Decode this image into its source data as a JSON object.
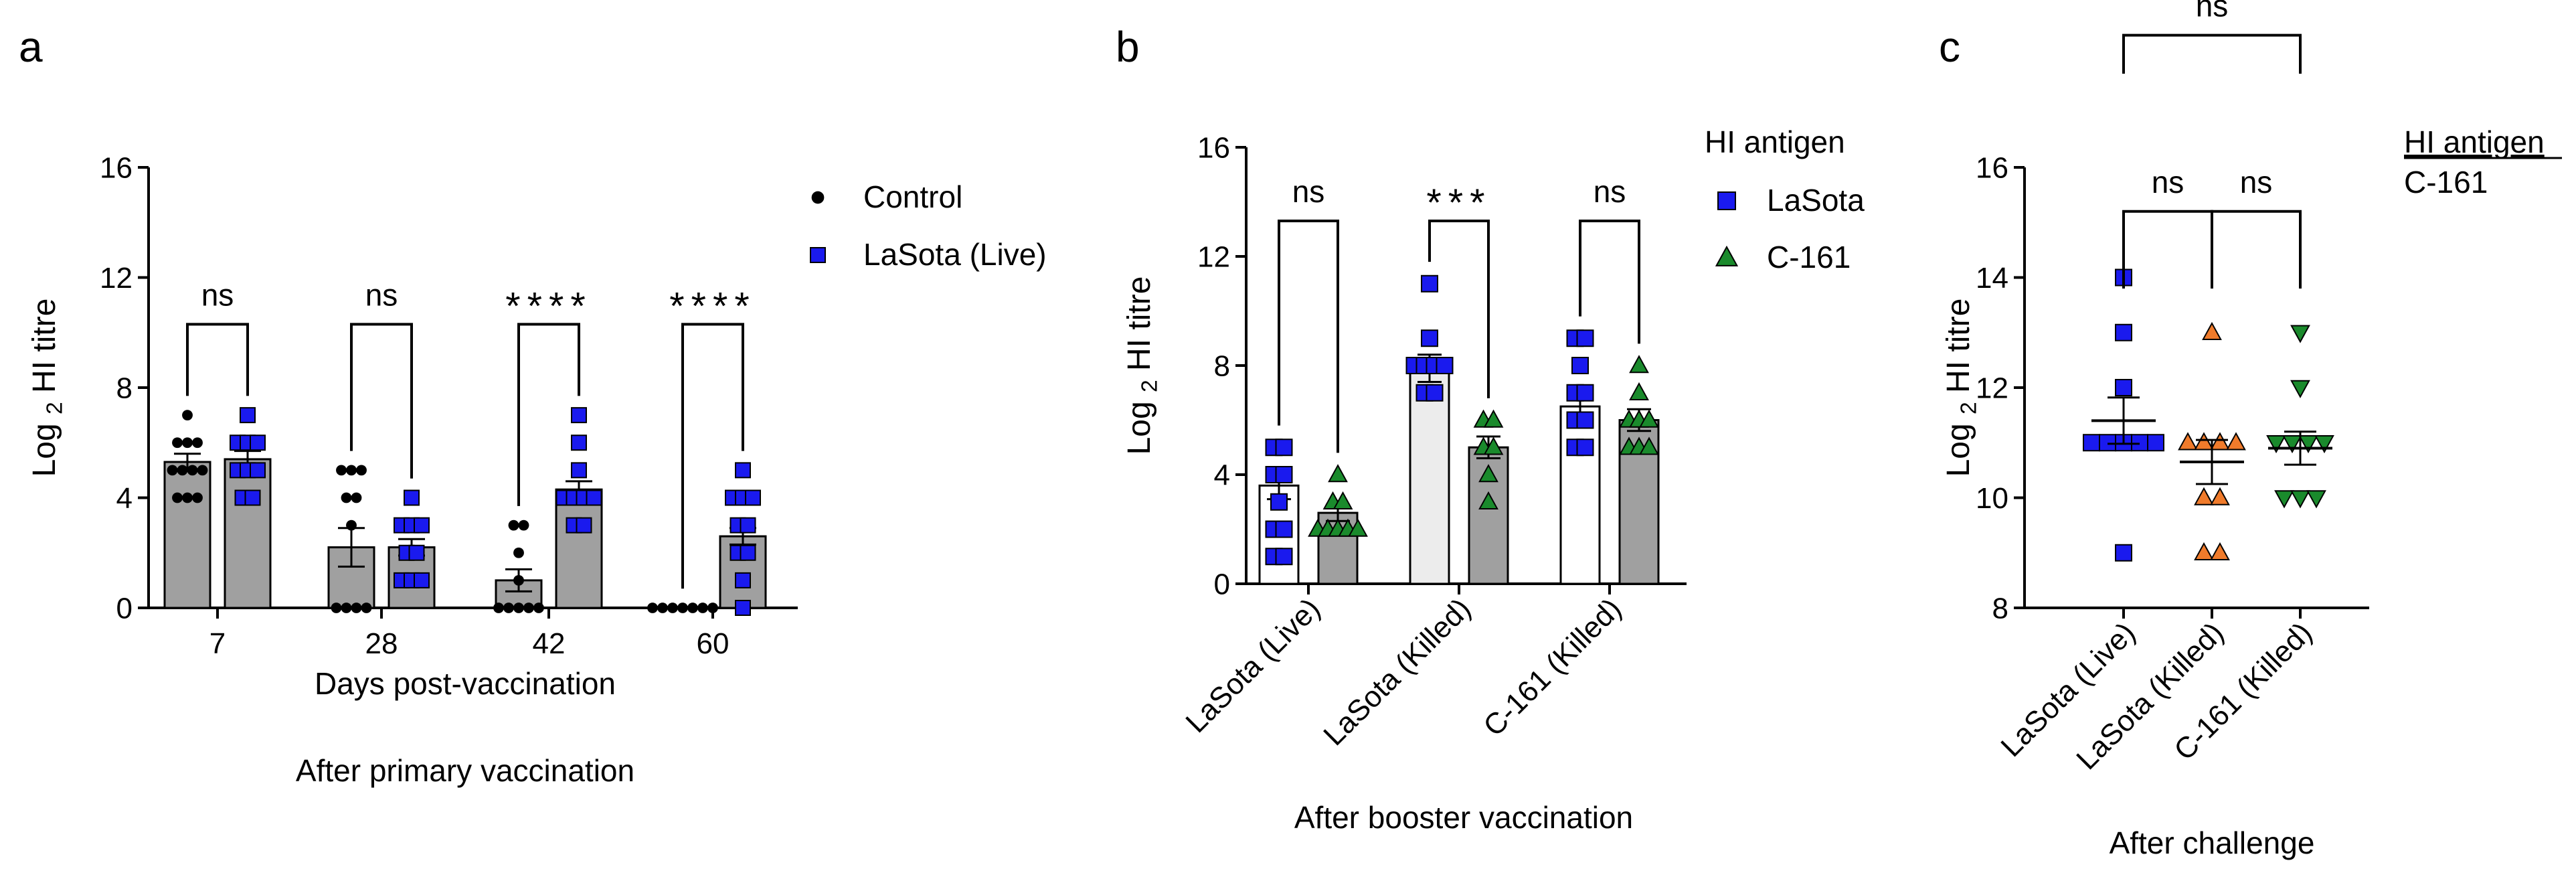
{
  "chart_data": [
    {
      "panel": "a",
      "type": "bar",
      "title": "After primary vaccination",
      "xlabel": "Days post-vaccination",
      "ylabel": {
        "pre": "Log",
        "sub": "2",
        "post": "HI titre"
      },
      "ylim": [
        0,
        16
      ],
      "yticks": [
        0,
        4,
        8,
        12,
        16
      ],
      "categories": [
        "7",
        "28",
        "42",
        "60"
      ],
      "legend": [
        {
          "label": "Control",
          "marker": "circle",
          "color": "#000000"
        },
        {
          "label": "LaSota (Live)",
          "marker": "square",
          "color": "#1a1aee"
        }
      ],
      "series": [
        {
          "name": "Control",
          "means": [
            5.3,
            2.2,
            1.0,
            0.0
          ],
          "sem": [
            0.3,
            0.7,
            0.4,
            0.0
          ],
          "points": [
            [
              7,
              6,
              6,
              6,
              5,
              5,
              5,
              5,
              4,
              4,
              4
            ],
            [
              5,
              5,
              5,
              4,
              4,
              3,
              0,
              0,
              0,
              0
            ],
            [
              3,
              3,
              2,
              1,
              0,
              0,
              0,
              0,
              0
            ],
            [
              0,
              0,
              0,
              0,
              0,
              0,
              0
            ]
          ]
        },
        {
          "name": "LaSota (Live)",
          "means": [
            5.4,
            2.2,
            4.3,
            2.6
          ],
          "sem": [
            0.3,
            0.3,
            0.3,
            0.3
          ],
          "points": [
            [
              7,
              6,
              6,
              6,
              5,
              5,
              5,
              4,
              4
            ],
            [
              4,
              3,
              3,
              3,
              2,
              2,
              1,
              1,
              1
            ],
            [
              7,
              6,
              5,
              4,
              4,
              4,
              4,
              3,
              3
            ],
            [
              5,
              4,
              4,
              4,
              3,
              3,
              2,
              2,
              1,
              0
            ]
          ]
        }
      ],
      "significance": [
        "ns",
        "ns",
        "****",
        "****"
      ]
    },
    {
      "panel": "b",
      "type": "bar",
      "title": "After booster vaccination",
      "ylabel": {
        "pre": "Log",
        "sub": "2",
        "post": "HI titre"
      },
      "ylim": [
        0,
        16
      ],
      "yticks": [
        0,
        4,
        8,
        12,
        16
      ],
      "categories": [
        "LaSota (Live)",
        "LaSota (Killed)",
        "C-161 (Killed)"
      ],
      "legend_title": "HI antigen",
      "legend": [
        {
          "label": "LaSota",
          "marker": "square",
          "color": "#1a1aee"
        },
        {
          "label": "C-161",
          "marker": "triangle",
          "color": "#1a8a2c"
        }
      ],
      "series": [
        {
          "name": "LaSota",
          "means": [
            3.6,
            7.9,
            6.5
          ],
          "sem": [
            0.5,
            0.5,
            0.5
          ],
          "points": [
            [
              5,
              5,
              4,
              4,
              3,
              2,
              2,
              1,
              1
            ],
            [
              11,
              9,
              8,
              8,
              8,
              8,
              7,
              7
            ],
            [
              9,
              9,
              8,
              7,
              7,
              6,
              6,
              5,
              5
            ]
          ]
        },
        {
          "name": "C-161",
          "means": [
            2.6,
            5.0,
            6.0
          ],
          "sem": [
            0.3,
            0.4,
            0.4
          ],
          "points": [
            [
              4,
              3,
              3,
              2,
              2,
              2,
              2,
              2
            ],
            [
              6,
              6,
              5,
              5,
              4,
              3
            ],
            [
              8,
              7,
              6,
              6,
              6,
              5,
              5,
              5
            ]
          ]
        }
      ],
      "significance": [
        "ns",
        "***",
        "ns"
      ]
    },
    {
      "panel": "c",
      "type": "scatter",
      "title": "After challenge",
      "ylabel": {
        "pre": "Log",
        "sub": "2",
        "post": "HI titre"
      },
      "ylim": [
        8,
        16
      ],
      "yticks": [
        8,
        10,
        12,
        14,
        16
      ],
      "categories": [
        "LaSota (Live)",
        "LaSota (Killed)",
        "C-161 (Killed)"
      ],
      "legend_title": "HI antigen",
      "legend_items": [
        "C-161"
      ],
      "groups": [
        {
          "name": "LaSota (Live)",
          "marker": "square",
          "color": "#1a1aee",
          "mean": 11.4,
          "sem": 0.42,
          "points": [
            14,
            13,
            12,
            11,
            11,
            11,
            11,
            11,
            9
          ]
        },
        {
          "name": "LaSota (Killed)",
          "marker": "triangle",
          "color": "#f07b2b",
          "mean": 10.65,
          "sem": 0.4,
          "points": [
            13,
            11,
            11,
            11,
            11,
            10,
            10,
            9,
            9
          ]
        },
        {
          "name": "C-161 (Killed)",
          "marker": "triangle-down",
          "color": "#1a8a2c",
          "mean": 10.9,
          "sem": 0.3,
          "points": [
            13,
            12,
            11,
            11,
            11,
            11,
            10,
            10,
            10
          ]
        }
      ],
      "comparisons": [
        {
          "from": 0,
          "to": 2,
          "label": "ns",
          "level": 1
        },
        {
          "from": 0,
          "to": 1,
          "label": "ns",
          "level": 0
        },
        {
          "from": 1,
          "to": 2,
          "label": "ns",
          "level": 0
        }
      ]
    }
  ],
  "panels": {
    "a": "a",
    "b": "b",
    "c": "c"
  }
}
